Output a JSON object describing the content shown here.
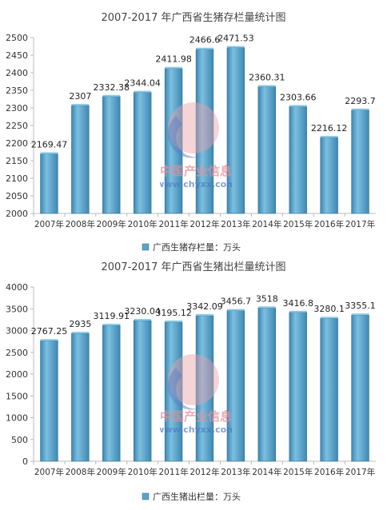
{
  "chart_data": [
    {
      "type": "bar",
      "title": "2007-2017 年广西省生猪存栏量统计图",
      "categories": [
        "2007年",
        "2008年",
        "2009年",
        "2010年",
        "2011年",
        "2012年",
        "2013年",
        "2014年",
        "2015年",
        "2016年",
        "2017年"
      ],
      "series": [
        {
          "name": "广西生猪存栏量：万头",
          "values": [
            2169.47,
            2307,
            2332.38,
            2344.04,
            2411.98,
            2466.6,
            2471.53,
            2360.31,
            2303.66,
            2216.12,
            2293.7
          ],
          "labels": [
            "2169.47",
            "2307",
            "2332.38",
            "2344.04",
            "2411.98",
            "2466.6",
            "2471.53",
            "2360.31",
            "2303.66",
            "2216.12",
            "2293.7"
          ]
        }
      ],
      "ylim": [
        2000,
        2500
      ],
      "yticks": [
        2000,
        2050,
        2100,
        2150,
        2200,
        2250,
        2300,
        2350,
        2400,
        2450,
        2500
      ],
      "grid": false,
      "legend": "bottom",
      "color": "#5ba3c9"
    },
    {
      "type": "bar",
      "title": "2007-2017 年广西省生猪出栏量统计图",
      "categories": [
        "2007年",
        "2008年",
        "2009年",
        "2010年",
        "2011年",
        "2012年",
        "2013年",
        "2014年",
        "2015年",
        "2016年",
        "2017年"
      ],
      "series": [
        {
          "name": "广西生猪出栏量：万头",
          "values": [
            2767.25,
            2935,
            3119.91,
            3230.04,
            3195.12,
            3342.09,
            3456.7,
            3518,
            3416.8,
            3280.1,
            3355.1
          ],
          "labels": [
            "2767.25",
            "2935",
            "3119.91",
            "3230.04",
            "3195.12",
            "3342.09",
            "3456.7",
            "3518",
            "3416.8",
            "3280.1",
            "3355.1"
          ]
        }
      ],
      "ylim": [
        0,
        4000
      ],
      "yticks": [
        0,
        500,
        1000,
        1500,
        2000,
        2500,
        3000,
        3500,
        4000
      ],
      "grid": false,
      "legend": "bottom",
      "color": "#5ba3c9"
    }
  ],
  "watermark": {
    "brand": "中国产业信息",
    "url": "www.chyxx.com"
  }
}
